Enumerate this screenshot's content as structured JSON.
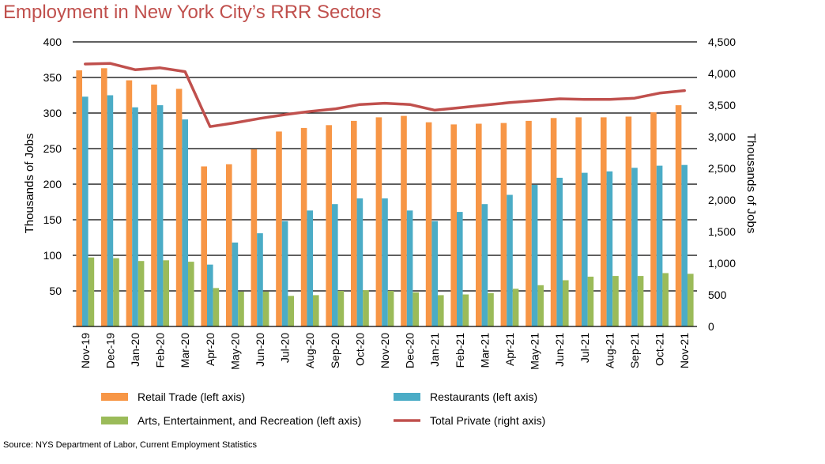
{
  "chart_data": {
    "type": "bar",
    "title": "Employment in New York City’s RRR Sectors",
    "source": "Source: NYS Department of Labor, Current Employment Statistics",
    "ylabel_left": "Thousands of Jobs",
    "ylabel_right": "Thousands of Jobs",
    "ylim_left": [
      0,
      400
    ],
    "ylim_right": [
      0,
      4500
    ],
    "yticks_left": [
      "50",
      "100",
      "150",
      "200",
      "250",
      "300",
      "350",
      "400"
    ],
    "yticks_right": [
      "0",
      "500",
      "1,000",
      "1,500",
      "2,000",
      "2,500",
      "3,000",
      "3,500",
      "4,000",
      "4,500"
    ],
    "grid": true,
    "legend_position": "bottom",
    "categories": [
      "Nov-19",
      "Dec-19",
      "Jan-20",
      "Feb-20",
      "Mar-20",
      "Apr-20",
      "May-20",
      "Jun-20",
      "Jul-20",
      "Aug-20",
      "Sep-20",
      "Oct-20",
      "Nov-20",
      "Dec-20",
      "Jan-21",
      "Feb-21",
      "Mar-21",
      "Apr-21",
      "May-21",
      "Jun-21",
      "Jul-21",
      "Aug-21",
      "Sep-21",
      "Oct-21",
      "Nov-21"
    ],
    "series": [
      {
        "name": "Retail Trade (left axis)",
        "axis": "left",
        "kind": "bar",
        "color": "#f79646",
        "values": [
          360,
          363,
          346,
          340,
          334,
          225,
          228,
          249,
          274,
          279,
          283,
          289,
          294,
          296,
          287,
          284,
          285,
          286,
          289,
          293,
          294,
          294,
          295,
          301,
          311
        ]
      },
      {
        "name": "Restaurants (left axis)",
        "axis": "left",
        "kind": "bar",
        "color": "#4bacc6",
        "values": [
          323,
          325,
          308,
          311,
          291,
          87,
          118,
          131,
          148,
          163,
          172,
          180,
          180,
          163,
          148,
          161,
          172,
          185,
          199,
          209,
          216,
          218,
          223,
          226,
          227
        ]
      },
      {
        "name": "Arts, Entertainment, and Recreation (left axis)",
        "axis": "left",
        "kind": "bar",
        "color": "#9bbb59",
        "values": [
          97,
          96,
          92,
          93,
          91,
          54,
          49,
          49,
          43,
          44,
          50,
          51,
          50,
          48,
          44,
          45,
          47,
          53,
          58,
          65,
          70,
          71,
          71,
          75,
          74
        ]
      },
      {
        "name": "Total Private (right axis)",
        "axis": "right",
        "kind": "line",
        "color": "#c0504d",
        "values": [
          4150,
          4160,
          4060,
          4090,
          4030,
          3160,
          3220,
          3290,
          3350,
          3400,
          3440,
          3510,
          3530,
          3510,
          3420,
          3460,
          3500,
          3540,
          3570,
          3600,
          3590,
          3590,
          3610,
          3690,
          3730
        ]
      }
    ]
  }
}
